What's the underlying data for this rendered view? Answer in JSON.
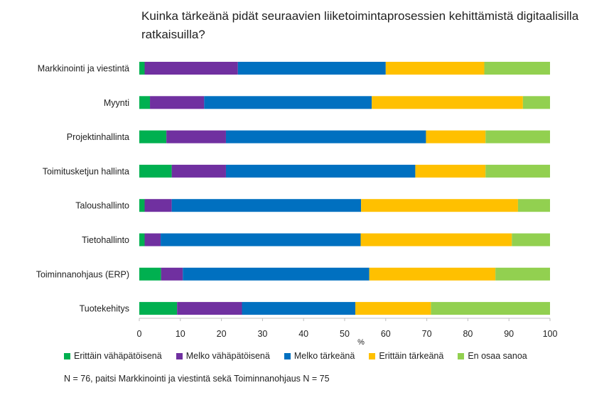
{
  "chart_data": {
    "type": "bar",
    "orientation": "horizontal",
    "stacked": true,
    "title": "Kuinka tärkeänä pidät seuraavien liiketoimintaprosessien kehittämistä digitaalisilla ratkaisuilla?",
    "xlabel": "%",
    "ylabel": "",
    "xlim": [
      0,
      100
    ],
    "xticks": [
      "0",
      "10",
      "20",
      "30",
      "40",
      "50",
      "60",
      "70",
      "80",
      "90",
      "100"
    ],
    "grid": false,
    "legend_position": "bottom",
    "categories": [
      "Markkinointi ja viestintä",
      "Myynti",
      "Projektinhallinta",
      "Toimitusketjun hallinta",
      "Taloushallinto",
      "Tietohallinto",
      "Toiminnanohjaus (ERP)",
      "Tuotekehitys"
    ],
    "series": [
      {
        "name": "Erittäin vähäpätöisenä",
        "color": "#00b050",
        "values": [
          1.3,
          2.6,
          6.6,
          7.9,
          1.3,
          1.3,
          5.3,
          9.2
        ]
      },
      {
        "name": "Melko vähäpätöisenä",
        "color": "#7030a0",
        "values": [
          22.7,
          13.2,
          14.5,
          13.2,
          6.6,
          3.9,
          5.3,
          15.8
        ]
      },
      {
        "name": "Melko tärkeänä",
        "color": "#0070c0",
        "values": [
          36.0,
          40.8,
          48.7,
          46.1,
          46.1,
          48.7,
          45.4,
          27.6
        ]
      },
      {
        "name": "Erittäin tärkeänä",
        "color": "#ffc000",
        "values": [
          24.0,
          36.8,
          14.5,
          17.1,
          38.2,
          36.8,
          30.7,
          18.4
        ]
      },
      {
        "name": "En osaa sanoa",
        "color": "#92d050",
        "values": [
          16.0,
          6.6,
          15.7,
          15.7,
          7.8,
          9.3,
          13.3,
          29.0
        ]
      }
    ]
  },
  "footnote": "N = 76, paitsi Markkinointi ja viestintä sekä Toiminnanohjaus N = 75"
}
